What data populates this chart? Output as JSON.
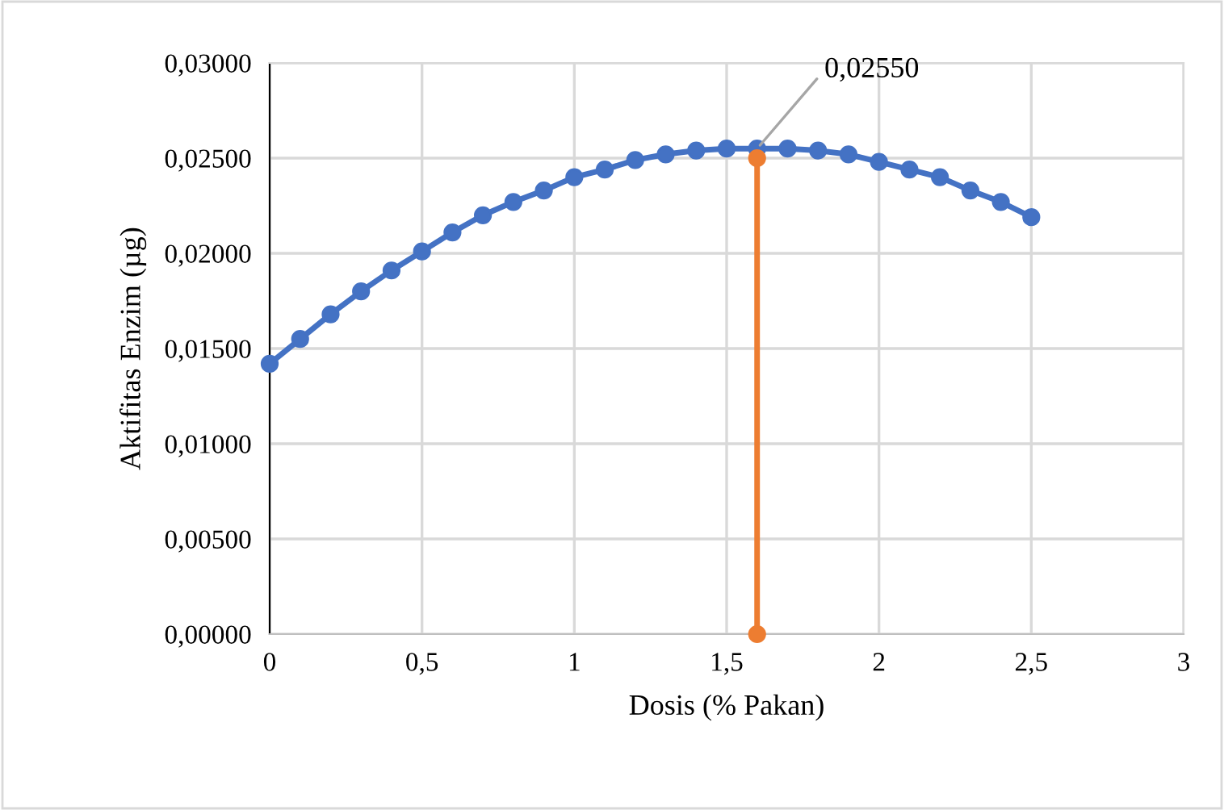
{
  "chart_data": {
    "type": "line",
    "xlabel": "Dosis (% Pakan)",
    "ylabel": "Aktifitas Enzim (µg)",
    "xlim": [
      0,
      3
    ],
    "xticks": [
      0,
      {
        "value": 0.5,
        "label": "0,5"
      },
      1,
      {
        "value": 1.5,
        "label": "1,5"
      },
      2,
      {
        "value": 2.5,
        "label": "2,5"
      },
      3
    ],
    "ylim": [
      0,
      0.03
    ],
    "yticks": [
      {
        "value": 0,
        "label": "0,00000"
      },
      {
        "value": 0.005,
        "label": "0,00500"
      },
      {
        "value": 0.01,
        "label": "0,01000"
      },
      {
        "value": 0.015,
        "label": "0,01500"
      },
      {
        "value": 0.02,
        "label": "0,02000"
      },
      {
        "value": 0.025,
        "label": "0,02500"
      },
      {
        "value": 0.03,
        "label": "0,03000"
      }
    ],
    "grid": true,
    "marker": "circle",
    "line_style": "solid",
    "series": [
      {
        "color": "#4472c4",
        "x": [
          0,
          0.1,
          0.2,
          0.3,
          0.4,
          0.5,
          0.6,
          0.7,
          0.8,
          0.9,
          1.0,
          1.1,
          1.2,
          1.3,
          1.4,
          1.5,
          1.6,
          1.7,
          1.8,
          1.9,
          2.0,
          2.1,
          2.2,
          2.3,
          2.4,
          2.5
        ],
        "values": [
          0.0142,
          0.0155,
          0.0168,
          0.018,
          0.0191,
          0.0201,
          0.0211,
          0.022,
          0.0227,
          0.0233,
          0.024,
          0.0244,
          0.0249,
          0.0252,
          0.0254,
          0.0255,
          0.0255,
          0.0255,
          0.0254,
          0.0252,
          0.0248,
          0.0244,
          0.024,
          0.0233,
          0.0227,
          0.0219
        ]
      },
      {
        "color": "#ed7d31",
        "x": [
          1.6,
          1.6
        ],
        "values": [
          0,
          0.025
        ]
      }
    ],
    "annotations": [
      {
        "text": "0,02550",
        "x": 1.6,
        "y": 0.0255
      }
    ]
  }
}
